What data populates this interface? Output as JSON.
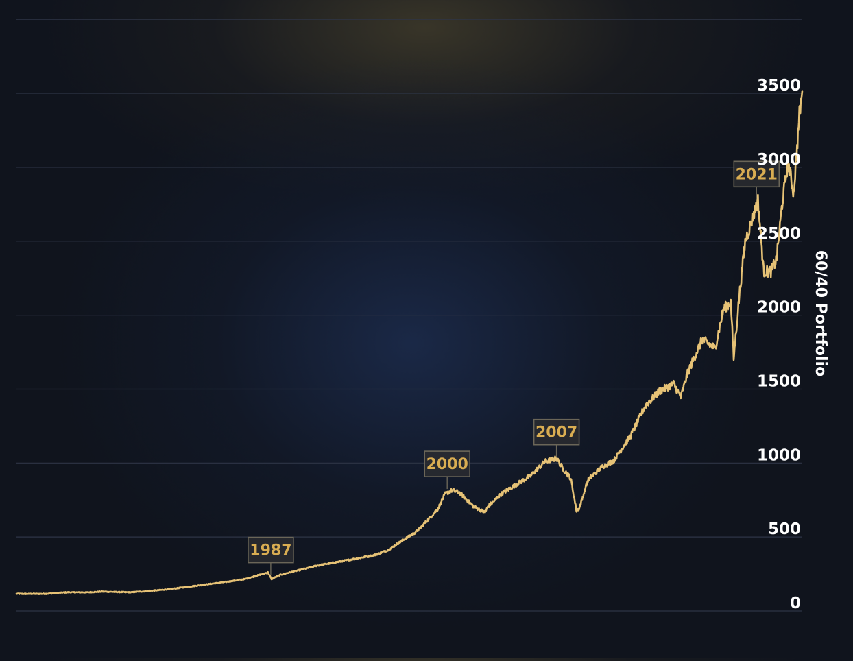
{
  "chart_data": {
    "type": "line",
    "title": "",
    "xlabel": "",
    "ylabel": "60/40 Portfolio",
    "x_range": [
      1970,
      2025
    ],
    "ylim": [
      0,
      4000
    ],
    "y_ticks": [
      "0",
      "500",
      "1000",
      "1500",
      "2000",
      "2500",
      "3000",
      "3500"
    ],
    "grid": true,
    "colors": {
      "line": "#e6c276",
      "grid": "#2e3546",
      "tick_label": "#ffffff",
      "annotation_text": "#d9ad52",
      "annotation_border": "#6b6658",
      "annotation_fill": "#2a2c30"
    },
    "series": [
      {
        "x": [
          1970.0,
          1972.0,
          1973.5,
          1975.0,
          1976.0,
          1978.0,
          1980.0,
          1981.0,
          1983.0,
          1985.0,
          1986.0,
          1987.6,
          1987.85,
          1988.5,
          1990.0,
          1991.0,
          1993.0,
          1995.0,
          1996.0,
          1997.0,
          1998.0,
          1998.8,
          1999.5,
          2000.0,
          2000.5,
          2001.0,
          2002.0,
          2002.8,
          2003.0,
          2004.0,
          2005.0,
          2006.0,
          2007.0,
          2007.8,
          2008.3,
          2008.8,
          2009.2,
          2009.4,
          2010.0,
          2011.0,
          2011.8,
          2012.0,
          2013.0,
          2014.0,
          2015.0,
          2016.0,
          2016.5,
          2017.0,
          2018.0,
          2018.9,
          2019.5,
          2020.0,
          2020.2,
          2020.6,
          2021.0,
          2021.9,
          2022.3,
          2022.8,
          2023.2,
          2023.6,
          2024.0,
          2024.4,
          2024.8,
          2025.0
        ],
        "y": [
          60,
          60,
          70,
          70,
          75,
          70,
          85,
          95,
          120,
          145,
          160,
          205,
          160,
          190,
          225,
          250,
          285,
          320,
          355,
          420,
          480,
          560,
          635,
          735,
          760,
          745,
          650,
          610,
          650,
          740,
          800,
          860,
          955,
          975,
          900,
          840,
          620,
          640,
          830,
          920,
          960,
          990,
          1130,
          1330,
          1430,
          1480,
          1390,
          1560,
          1780,
          1720,
          1990,
          2030,
          1650,
          2080,
          2440,
          2720,
          2240,
          2240,
          2320,
          2700,
          2980,
          2770,
          3300,
          3460
        ]
      }
    ],
    "annotations": [
      {
        "label": "1987",
        "x": 1987.8,
        "y": 178
      },
      {
        "label": "2000",
        "x": 2000.15,
        "y": 760
      },
      {
        "label": "2007",
        "x": 2007.8,
        "y": 975
      },
      {
        "label": "2021",
        "x": 2021.8,
        "y": 2720
      }
    ]
  }
}
